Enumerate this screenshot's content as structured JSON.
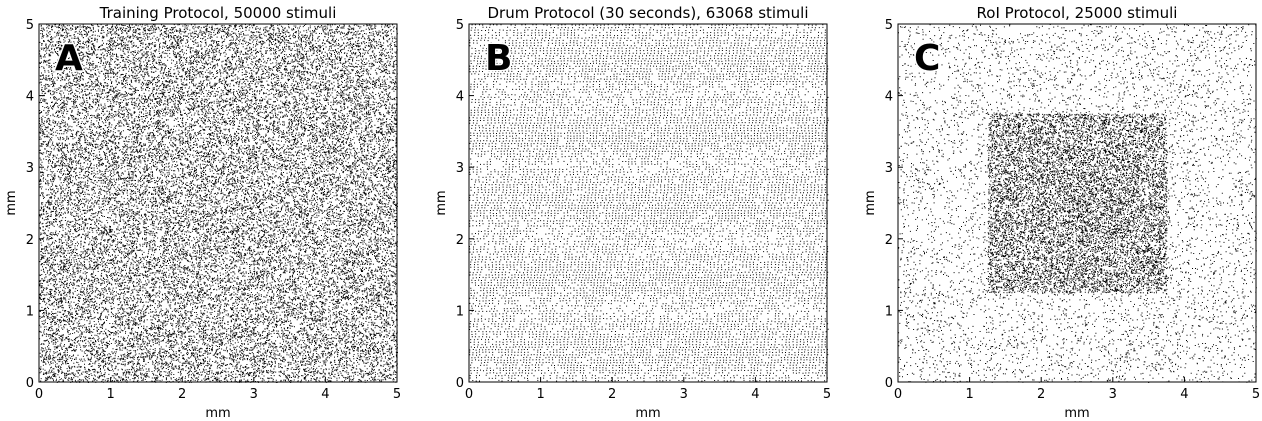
{
  "chart_data": [
    {
      "type": "scatter",
      "panel_label": "A",
      "title": "Training Protocol, 50000 stimuli",
      "xlabel": "mm",
      "ylabel": "mm",
      "xlim": [
        0,
        5
      ],
      "ylim": [
        0,
        5
      ],
      "xticks": [
        "0",
        "1",
        "2",
        "3",
        "4",
        "5"
      ],
      "yticks": [
        "0",
        "1",
        "2",
        "3",
        "4",
        "5"
      ],
      "stimuli_count": 50000,
      "distribution": "uniform random over the full 5x5 mm field",
      "marker_color": "#000000"
    },
    {
      "type": "scatter",
      "panel_label": "B",
      "title": "Drum Protocol (30 seconds), 63068 stimuli",
      "xlabel": "mm",
      "ylabel": "mm",
      "xlim": [
        0,
        5
      ],
      "ylim": [
        0,
        5
      ],
      "xticks": [
        "0",
        "1",
        "2",
        "3",
        "4",
        "5"
      ],
      "yticks": [
        "0",
        "1",
        "2",
        "3",
        "4",
        "5"
      ],
      "stimuli_count": 63068,
      "distribution": "regular drum pattern of horizontal stripes with periodic dot arrangement",
      "marker_color": "#000000"
    },
    {
      "type": "scatter",
      "panel_label": "C",
      "title": "RoI Protocol, 25000 stimuli",
      "xlabel": "mm",
      "ylabel": "mm",
      "xlim": [
        0,
        5
      ],
      "ylim": [
        0,
        5
      ],
      "xticks": [
        "0",
        "1",
        "2",
        "3",
        "4",
        "5"
      ],
      "yticks": [
        "0",
        "1",
        "2",
        "3",
        "4",
        "5"
      ],
      "stimuli_count": 25000,
      "distribution": "sparse uniform background with a denser square region of interest",
      "roi": {
        "x": [
          1.25,
          3.75
        ],
        "y": [
          1.25,
          3.75
        ]
      },
      "marker_color": "#000000"
    }
  ]
}
